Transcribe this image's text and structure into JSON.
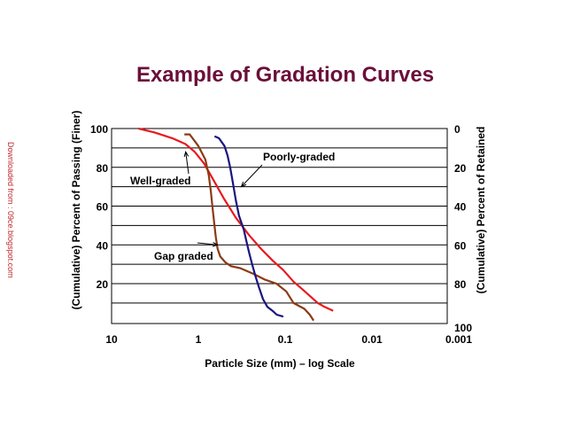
{
  "watermark": "Downloaded from : 09ce.blogspot.com",
  "chart_data": {
    "type": "line",
    "title": "Example of Gradation Curves",
    "xlabel": "Particle Size (mm) – log Scale",
    "ylabel": "(Cumulative) Percent of Passing (Finer)",
    "ylabel_right": "(Cumulative) Percent of Retained",
    "x_scale": "log",
    "x_reversed": true,
    "xlim": [
      10,
      0.001
    ],
    "ylim": [
      0,
      100
    ],
    "grid": "horizontal",
    "x_ticks": [
      {
        "value": 10,
        "label": "10"
      },
      {
        "value": 1,
        "label": "1"
      },
      {
        "value": 0.1,
        "label": "0.1"
      },
      {
        "value": 0.01,
        "label": "0.01"
      },
      {
        "value": 0.001,
        "label": "0.001"
      }
    ],
    "y_ticks_left": [
      {
        "value": 100,
        "label": "100"
      },
      {
        "value": 80,
        "label": "80"
      },
      {
        "value": 60,
        "label": "60"
      },
      {
        "value": 40,
        "label": "40"
      },
      {
        "value": 20,
        "label": "20"
      }
    ],
    "y_ticks_right": [
      {
        "value": 100,
        "label": "0"
      },
      {
        "value": 80,
        "label": "20"
      },
      {
        "value": 60,
        "label": "40"
      },
      {
        "value": 40,
        "label": "60"
      },
      {
        "value": 20,
        "label": "80"
      },
      {
        "value": 0,
        "label": "100"
      }
    ],
    "series": [
      {
        "color": "#e8191f",
        "x": [
          4.9,
          3.2,
          2.0,
          1.41,
          1.1,
          0.86,
          0.68,
          0.51,
          0.37,
          0.26,
          0.19,
          0.14,
          0.105,
          0.08,
          0.063,
          0.05,
          0.042,
          0.035,
          0.028
        ],
        "y": [
          100,
          98,
          95,
          92,
          88,
          82,
          74,
          64,
          54,
          45,
          38,
          32,
          27,
          21,
          17,
          13,
          10,
          8,
          6
        ]
      },
      {
        "color": "#8b3a14",
        "x": [
          1.45,
          1.26,
          1.0,
          0.83,
          0.76,
          0.72,
          0.69,
          0.66,
          0.63,
          0.6,
          0.56,
          0.49,
          0.42,
          0.33,
          0.23,
          0.17,
          0.126,
          0.097,
          0.08,
          0.06,
          0.052,
          0.047
        ],
        "y": [
          97,
          97,
          91,
          84,
          76,
          68,
          60,
          52,
          44,
          38,
          34,
          31,
          29,
          28,
          25,
          22,
          20,
          16,
          10,
          7,
          4,
          1
        ]
      },
      {
        "color": "#1a1480",
        "x": [
          0.65,
          0.58,
          0.5,
          0.46,
          0.43,
          0.4,
          0.37,
          0.34,
          0.3,
          0.28,
          0.26,
          0.24,
          0.22,
          0.2,
          0.18,
          0.16,
          0.14,
          0.125,
          0.105
        ],
        "y": [
          96,
          95,
          91,
          86,
          80,
          72,
          63,
          55,
          48,
          42,
          36,
          30,
          24,
          18,
          12,
          8,
          6,
          4,
          3
        ]
      }
    ],
    "annotations": [
      {
        "text": "Poorly-graded",
        "x": 0.18,
        "y": 81,
        "arrow_to": {
          "x": 0.32,
          "y": 70
        }
      },
      {
        "text": "Well-graded",
        "x": 3.0,
        "y": 69,
        "arrow_to": {
          "x": 1.4,
          "y": 88
        }
      },
      {
        "text": "Gap graded",
        "x": 1.9,
        "y": 21,
        "arrow_to": {
          "x": 0.6,
          "y": 40
        }
      }
    ]
  }
}
